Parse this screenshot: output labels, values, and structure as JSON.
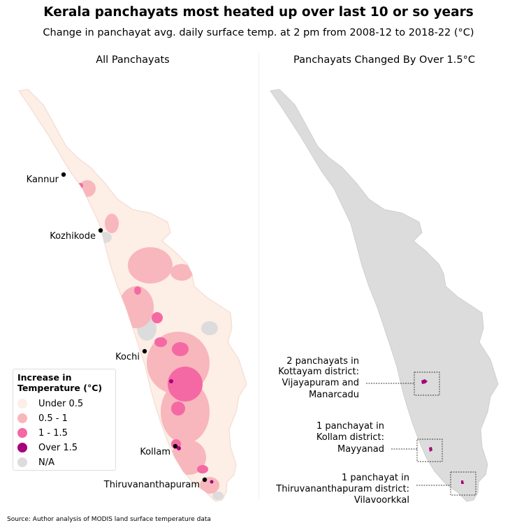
{
  "title": "Kerala panchayats most heated up over last 10 or so years",
  "subtitle": "Change in panchayat avg. daily surface temp. at 2 pm from 2008-12 to 2018-22 (°C)",
  "source": "Source: Author analysis of MODIS land surface temperature data",
  "chart_data": [
    {
      "type": "choropleth",
      "title": "All Panchayats",
      "legend": {
        "title_line1": "Increase in",
        "title_line2": "Temperature (°C)",
        "placement": "lower-left",
        "items": [
          {
            "label": "Under 0.5",
            "color": "#fdeee6"
          },
          {
            "label": "0.5 - 1",
            "color": "#f8b7bc"
          },
          {
            "label": "1 - 1.5",
            "color": "#f469a4"
          },
          {
            "label": "Over 1.5",
            "color": "#a8007c"
          },
          {
            "label": "N/A",
            "color": "#dcdcdc"
          }
        ]
      },
      "cities": [
        "Kannur",
        "Kozhikode",
        "Kochi",
        "Kollam",
        "Thiruvananthapuram"
      ]
    },
    {
      "type": "choropleth",
      "title": "Panchayats Changed By Over 1.5°C",
      "base_color": "#dcdcdc",
      "highlight_color": "#a8007c",
      "annotations": [
        {
          "count": 2,
          "lines": [
            "2 panchayats in",
            "Kottayam district:",
            "Vijayapuram and",
            "Manarcadu"
          ]
        },
        {
          "count": 1,
          "lines": [
            "1 panchayat in",
            "Kollam district:",
            "Mayyanad"
          ]
        },
        {
          "count": 1,
          "lines": [
            "1 panchayat in",
            "Thiruvananthapuram district:",
            "Vilavoorkkal"
          ]
        }
      ]
    }
  ]
}
